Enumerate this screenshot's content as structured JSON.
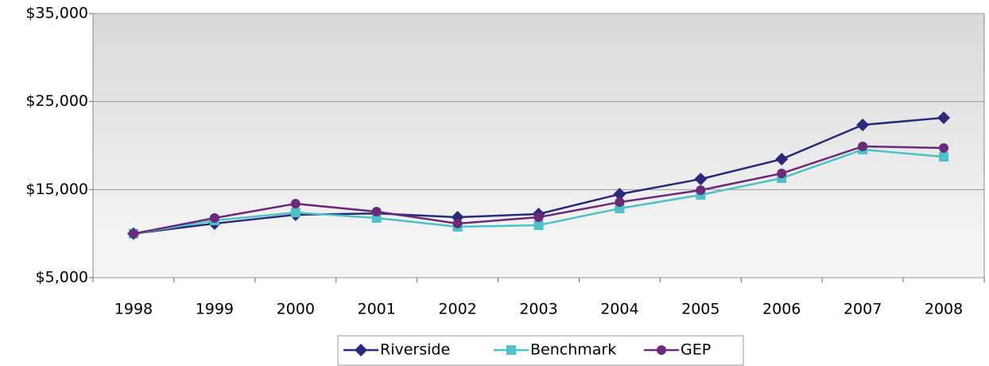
{
  "chart_data": {
    "type": "line",
    "categories": [
      "1998",
      "1999",
      "2000",
      "2001",
      "2002",
      "2003",
      "2004",
      "2005",
      "2006",
      "2007",
      "2008"
    ],
    "series": [
      {
        "name": "Riverside",
        "color": "#2b2a7a",
        "marker": "diamond",
        "values": [
          10000,
          11150,
          12150,
          12300,
          11870,
          12230,
          14490,
          16200,
          18460,
          22350,
          23160
        ]
      },
      {
        "name": "Benchmark",
        "color": "#4ec1c8",
        "marker": "square",
        "values": [
          10000,
          11500,
          12400,
          11780,
          10780,
          10960,
          12860,
          14400,
          16300,
          19550,
          18730
        ]
      },
      {
        "name": "GEP",
        "color": "#6a2a7a",
        "marker": "circle",
        "values": [
          10000,
          11780,
          13400,
          12500,
          11150,
          11870,
          13580,
          14940,
          16840,
          19910,
          19730
        ]
      }
    ],
    "ylim": [
      5000,
      35000
    ],
    "yticks": [
      {
        "value": 5000,
        "label": "$5,000"
      },
      {
        "value": 15000,
        "label": "$15,000"
      },
      {
        "value": 25000,
        "label": "$25,000"
      },
      {
        "value": 35000,
        "label": "$35,000"
      }
    ],
    "grid": true,
    "legend": "bottom"
  }
}
